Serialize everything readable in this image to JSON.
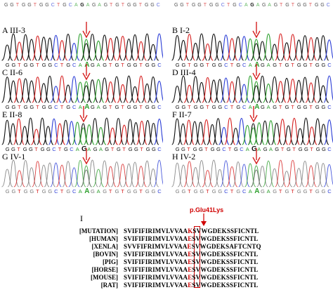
{
  "colors": {
    "A": "#2ea02e",
    "C": "#2d3fd6",
    "G": "#111111",
    "T": "#d62020",
    "arrow": "#d62020",
    "highlight": "#d00000",
    "faded_G": "#777777"
  },
  "top_reference": "GGTGGTGGCTGCAGAGAGTGTGGTGGC",
  "panels": [
    {
      "id": "A",
      "label": "A III-3",
      "bases": "GGTGGTGGCTGCAAGAGTGTGGTGGC",
      "highlight_index": 13,
      "col": 0,
      "row": 0,
      "faded": false
    },
    {
      "id": "B",
      "label": "B I-2",
      "bases": "GGTGGTGGCTGCAAGAGTGTGGTGGC",
      "highlight_index": 13,
      "col": 1,
      "row": 0,
      "faded": false
    },
    {
      "id": "C",
      "label": "C II-6",
      "bases": "GGTGGTGGCTGCAAGAGTGTGGTGGC",
      "highlight_index": 13,
      "col": 0,
      "row": 1,
      "faded": false
    },
    {
      "id": "D",
      "label": "D III-4",
      "bases": "GGTGGTGGCTGCAAGAGTGTGGTGGC",
      "highlight_index": 13,
      "col": 1,
      "row": 1,
      "faded": false
    },
    {
      "id": "E",
      "label": "E II-8",
      "bases": "GGTGGTGGCTGCAGAGAGTGTGGTGGC",
      "highlight_index": 13,
      "col": 0,
      "row": 2,
      "faded": false
    },
    {
      "id": "F",
      "label": "F II-7",
      "bases": "GGTGGTGGCTGCAGAGAGTGTGGTGGC",
      "highlight_index": 13,
      "col": 1,
      "row": 2,
      "faded": false
    },
    {
      "id": "G",
      "label": "G IV-1",
      "bases": "GGTGGTGGCTGCAAGAGTGTGGTGGC",
      "highlight_index": 13,
      "col": 0,
      "row": 3,
      "faded": true
    },
    {
      "id": "H",
      "label": "H IV-2",
      "bases": "GGTGGTGGCTGCAAGAGTGTGGTGGC",
      "highlight_index": 13,
      "col": 1,
      "row": 3,
      "faded": true
    }
  ],
  "alignment": {
    "panel_label": "I",
    "mutation_label": "p.Glu41Lys",
    "rows": [
      {
        "species": "[MUTATION]",
        "pre": "SVIFIFIRIMVLVVAA",
        "aa": "K",
        "post": "SVWGDEKSSFICNTL"
      },
      {
        "species": "[HUMAN]",
        "pre": "SVIFIFIRIMVLVVAA",
        "aa": "E",
        "post": "SVWGDEKSSFICNTL"
      },
      {
        "species": "[XENLA]",
        "pre": "SVVFIFRIMVLVVAA",
        "aa": "E",
        "post": "SVWGDEKSAFTCNTQ"
      },
      {
        "species": "[BOVIN]",
        "pre": "SVIFIFIRIMVLVVAA",
        "aa": "E",
        "post": "SVWGDEKSSFICNTL"
      },
      {
        "species": "[PIG]",
        "pre": "SVIFIFIRIMVLVVAA",
        "aa": "E",
        "post": "SVWGDEKSSFICNTL"
      },
      {
        "species": "[HORSE]",
        "pre": "SVIFIFIRIMVLVVAA",
        "aa": "E",
        "post": "SVWGDEKSSFICNTL"
      },
      {
        "species": "[MOUSE]",
        "pre": "SVIFIFIRIMVLVVAA",
        "aa": "E",
        "post": "SVWGDEKSSFICNTL"
      },
      {
        "species": "[RAT]",
        "pre": "SVIFIFIRIMVLVVAA",
        "aa": "E",
        "post": "SVWGDEKSSFICNTL"
      }
    ]
  }
}
